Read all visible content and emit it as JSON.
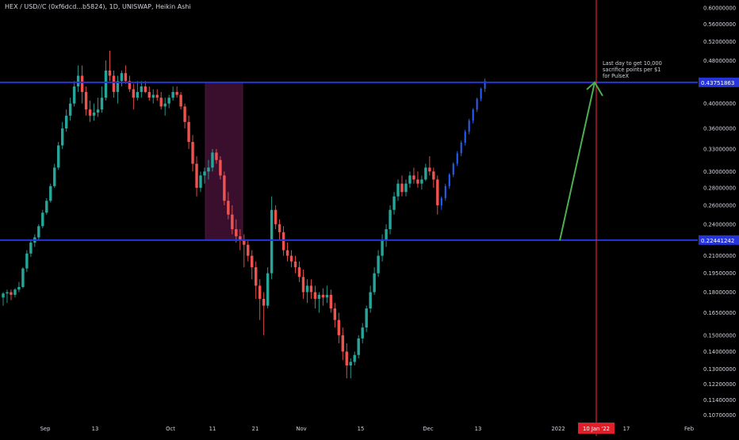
{
  "header": {
    "title": "HEX / USD//C (0xf6dcd...b5824), 1D, UNISWAP, Heikin Ashi"
  },
  "colors": {
    "background": "#000000",
    "up": "#26a69a",
    "down": "#ef5350",
    "projection": "#2962ff",
    "hline": "#2635d9",
    "vline": "#e01f2a",
    "arrow": "#4caf50",
    "zone": "#3a0f2e",
    "text": "#d1d4dc"
  },
  "chart_data": {
    "type": "candlestick",
    "title": "HEX / USD//C (0xf6dcd...b5824), 1D, UNISWAP, Heikin Ashi",
    "x_ticks": [
      "Sep",
      "13",
      "Oct",
      "11",
      "21",
      "Nov",
      "15",
      "Dec",
      "13",
      "2022",
      "10 Jan '22",
      "17",
      "Feb"
    ],
    "y_ticks": [
      "0.60000000",
      "0.56000000",
      "0.52000000",
      "0.48000000",
      "0.40000000",
      "0.36000000",
      "0.33000000",
      "0.30000000",
      "0.28000000",
      "0.26000000",
      "0.24000000",
      "0.21000000",
      "0.19500000",
      "0.18000000",
      "0.16500000",
      "0.15000000",
      "0.14000000",
      "0.13000000",
      "0.12200000",
      "0.11400000",
      "0.10700000"
    ],
    "y_scale": "log",
    "ylim": [
      0.104,
      0.62
    ],
    "horizontal_lines": [
      {
        "value": 0.43751863,
        "label": "0.43751863"
      },
      {
        "value": 0.22441242,
        "label": "0.22441242"
      }
    ],
    "vertical_marker": {
      "label": "10 Jan '22"
    },
    "annotation": {
      "text": [
        "Last day to get 10,000",
        "sacrifice points per $1",
        "for PulseX"
      ]
    },
    "arrow": {
      "from_value": 0.224,
      "to_value": 0.4375
    },
    "zone": {
      "from_value": 0.224,
      "to_value": 0.4375
    },
    "candles": [
      [
        0.176,
        0.18,
        0.17,
        0.179
      ],
      [
        0.179,
        0.182,
        0.172,
        0.18
      ],
      [
        0.18,
        0.182,
        0.174,
        0.178
      ],
      [
        0.178,
        0.183,
        0.176,
        0.182
      ],
      [
        0.182,
        0.188,
        0.18,
        0.184
      ],
      [
        0.184,
        0.2,
        0.183,
        0.199
      ],
      [
        0.199,
        0.215,
        0.196,
        0.212
      ],
      [
        0.212,
        0.225,
        0.209,
        0.222
      ],
      [
        0.222,
        0.23,
        0.218,
        0.227
      ],
      [
        0.227,
        0.24,
        0.224,
        0.238
      ],
      [
        0.238,
        0.255,
        0.236,
        0.252
      ],
      [
        0.252,
        0.268,
        0.25,
        0.265
      ],
      [
        0.265,
        0.285,
        0.263,
        0.282
      ],
      [
        0.282,
        0.31,
        0.28,
        0.305
      ],
      [
        0.305,
        0.34,
        0.302,
        0.335
      ],
      [
        0.335,
        0.37,
        0.33,
        0.36
      ],
      [
        0.36,
        0.39,
        0.355,
        0.38
      ],
      [
        0.38,
        0.41,
        0.372,
        0.4
      ],
      [
        0.4,
        0.44,
        0.395,
        0.43
      ],
      [
        0.43,
        0.47,
        0.42,
        0.45
      ],
      [
        0.45,
        0.47,
        0.4,
        0.42
      ],
      [
        0.42,
        0.43,
        0.38,
        0.39
      ],
      [
        0.39,
        0.405,
        0.37,
        0.38
      ],
      [
        0.38,
        0.4,
        0.372,
        0.385
      ],
      [
        0.385,
        0.41,
        0.378,
        0.39
      ],
      [
        0.39,
        0.43,
        0.385,
        0.41
      ],
      [
        0.41,
        0.48,
        0.405,
        0.46
      ],
      [
        0.46,
        0.5,
        0.44,
        0.45
      ],
      [
        0.45,
        0.46,
        0.41,
        0.42
      ],
      [
        0.42,
        0.45,
        0.4,
        0.44
      ],
      [
        0.44,
        0.46,
        0.43,
        0.455
      ],
      [
        0.455,
        0.47,
        0.435,
        0.44
      ],
      [
        0.44,
        0.45,
        0.42,
        0.425
      ],
      [
        0.425,
        0.435,
        0.39,
        0.41
      ],
      [
        0.41,
        0.44,
        0.405,
        0.42
      ],
      [
        0.42,
        0.44,
        0.41,
        0.43
      ],
      [
        0.43,
        0.44,
        0.418,
        0.42
      ],
      [
        0.42,
        0.43,
        0.405,
        0.41
      ],
      [
        0.41,
        0.425,
        0.4,
        0.415
      ],
      [
        0.415,
        0.425,
        0.405,
        0.41
      ],
      [
        0.41,
        0.42,
        0.39,
        0.395
      ],
      [
        0.395,
        0.41,
        0.38,
        0.4
      ],
      [
        0.4,
        0.415,
        0.392,
        0.41
      ],
      [
        0.41,
        0.43,
        0.405,
        0.42
      ],
      [
        0.42,
        0.43,
        0.41,
        0.415
      ],
      [
        0.415,
        0.42,
        0.39,
        0.395
      ],
      [
        0.395,
        0.4,
        0.36,
        0.37
      ],
      [
        0.37,
        0.38,
        0.33,
        0.34
      ],
      [
        0.34,
        0.35,
        0.3,
        0.31
      ],
      [
        0.31,
        0.32,
        0.27,
        0.28
      ],
      [
        0.28,
        0.3,
        0.275,
        0.295
      ],
      [
        0.295,
        0.305,
        0.285,
        0.3
      ],
      [
        0.3,
        0.315,
        0.29,
        0.305
      ],
      [
        0.305,
        0.33,
        0.3,
        0.325
      ],
      [
        0.325,
        0.33,
        0.31,
        0.315
      ],
      [
        0.315,
        0.32,
        0.29,
        0.295
      ],
      [
        0.295,
        0.3,
        0.26,
        0.265
      ],
      [
        0.265,
        0.275,
        0.245,
        0.25
      ],
      [
        0.25,
        0.26,
        0.23,
        0.235
      ],
      [
        0.235,
        0.245,
        0.222,
        0.228
      ],
      [
        0.228,
        0.235,
        0.215,
        0.225
      ],
      [
        0.225,
        0.23,
        0.2,
        0.22
      ],
      [
        0.22,
        0.225,
        0.205,
        0.21
      ],
      [
        0.21,
        0.215,
        0.19,
        0.2
      ],
      [
        0.2,
        0.205,
        0.175,
        0.185
      ],
      [
        0.185,
        0.19,
        0.16,
        0.175
      ],
      [
        0.175,
        0.18,
        0.15,
        0.17
      ],
      [
        0.17,
        0.2,
        0.168,
        0.195
      ],
      [
        0.195,
        0.27,
        0.19,
        0.255
      ],
      [
        0.255,
        0.26,
        0.235,
        0.24
      ],
      [
        0.24,
        0.245,
        0.225,
        0.232
      ],
      [
        0.232,
        0.238,
        0.21,
        0.215
      ],
      [
        0.215,
        0.222,
        0.205,
        0.21
      ],
      [
        0.21,
        0.215,
        0.2,
        0.205
      ],
      [
        0.205,
        0.21,
        0.195,
        0.2
      ],
      [
        0.2,
        0.205,
        0.188,
        0.192
      ],
      [
        0.192,
        0.198,
        0.175,
        0.18
      ],
      [
        0.18,
        0.19,
        0.172,
        0.185
      ],
      [
        0.185,
        0.19,
        0.175,
        0.18
      ],
      [
        0.18,
        0.185,
        0.168,
        0.175
      ],
      [
        0.175,
        0.18,
        0.165,
        0.178
      ],
      [
        0.178,
        0.183,
        0.17,
        0.176
      ],
      [
        0.176,
        0.185,
        0.172,
        0.178
      ],
      [
        0.178,
        0.182,
        0.165,
        0.168
      ],
      [
        0.168,
        0.172,
        0.155,
        0.16
      ],
      [
        0.16,
        0.165,
        0.145,
        0.15
      ],
      [
        0.15,
        0.155,
        0.135,
        0.14
      ],
      [
        0.14,
        0.145,
        0.125,
        0.132
      ],
      [
        0.132,
        0.136,
        0.125,
        0.134
      ],
      [
        0.134,
        0.14,
        0.132,
        0.138
      ],
      [
        0.138,
        0.15,
        0.136,
        0.148
      ],
      [
        0.148,
        0.158,
        0.145,
        0.155
      ],
      [
        0.155,
        0.17,
        0.152,
        0.168
      ],
      [
        0.168,
        0.185,
        0.165,
        0.18
      ],
      [
        0.18,
        0.2,
        0.178,
        0.195
      ],
      [
        0.195,
        0.215,
        0.192,
        0.21
      ],
      [
        0.21,
        0.23,
        0.205,
        0.225
      ],
      [
        0.225,
        0.24,
        0.218,
        0.235
      ],
      [
        0.235,
        0.26,
        0.23,
        0.255
      ],
      [
        0.255,
        0.275,
        0.25,
        0.27
      ],
      [
        0.27,
        0.29,
        0.265,
        0.285
      ],
      [
        0.285,
        0.295,
        0.27,
        0.275
      ],
      [
        0.275,
        0.29,
        0.27,
        0.285
      ],
      [
        0.285,
        0.3,
        0.28,
        0.295
      ],
      [
        0.295,
        0.305,
        0.285,
        0.29
      ],
      [
        0.29,
        0.3,
        0.28,
        0.285
      ],
      [
        0.285,
        0.295,
        0.278,
        0.29
      ],
      [
        0.29,
        0.31,
        0.288,
        0.305
      ],
      [
        0.305,
        0.32,
        0.295,
        0.3
      ],
      [
        0.3,
        0.305,
        0.28,
        0.29
      ],
      [
        0.29,
        0.295,
        0.25,
        0.26
      ]
    ],
    "projection_candles": [
      [
        0.26,
        0.27,
        0.255,
        0.268
      ],
      [
        0.268,
        0.285,
        0.265,
        0.282
      ],
      [
        0.282,
        0.298,
        0.279,
        0.296
      ],
      [
        0.296,
        0.312,
        0.293,
        0.31
      ],
      [
        0.31,
        0.327,
        0.307,
        0.324
      ],
      [
        0.324,
        0.342,
        0.32,
        0.339
      ],
      [
        0.339,
        0.358,
        0.335,
        0.355
      ],
      [
        0.355,
        0.375,
        0.351,
        0.372
      ],
      [
        0.372,
        0.392,
        0.368,
        0.39
      ],
      [
        0.39,
        0.41,
        0.386,
        0.408
      ],
      [
        0.408,
        0.428,
        0.404,
        0.426
      ],
      [
        0.426,
        0.445,
        0.42,
        0.44
      ]
    ]
  }
}
